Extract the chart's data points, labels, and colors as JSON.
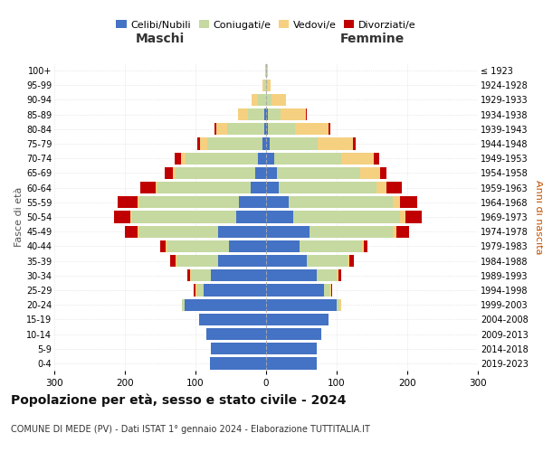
{
  "age_groups": [
    "0-4",
    "5-9",
    "10-14",
    "15-19",
    "20-24",
    "25-29",
    "30-34",
    "35-39",
    "40-44",
    "45-49",
    "50-54",
    "55-59",
    "60-64",
    "65-69",
    "70-74",
    "75-79",
    "80-84",
    "85-89",
    "90-94",
    "95-99",
    "100+"
  ],
  "birth_years": [
    "2019-2023",
    "2014-2018",
    "2009-2013",
    "2004-2008",
    "1999-2003",
    "1994-1998",
    "1989-1993",
    "1984-1988",
    "1979-1983",
    "1974-1978",
    "1969-1973",
    "1964-1968",
    "1959-1963",
    "1954-1958",
    "1949-1953",
    "1944-1948",
    "1939-1943",
    "1934-1938",
    "1929-1933",
    "1924-1928",
    "≤ 1923"
  ],
  "male_celibi": [
    80,
    78,
    85,
    95,
    115,
    88,
    78,
    68,
    52,
    68,
    42,
    38,
    22,
    16,
    12,
    5,
    3,
    2,
    0,
    0,
    0
  ],
  "male_coniugati": [
    0,
    0,
    0,
    0,
    4,
    10,
    28,
    58,
    88,
    112,
    148,
    142,
    132,
    112,
    102,
    78,
    52,
    24,
    12,
    3,
    1
  ],
  "male_vedovi": [
    0,
    0,
    0,
    0,
    0,
    2,
    2,
    2,
    2,
    2,
    2,
    2,
    2,
    4,
    6,
    10,
    16,
    14,
    8,
    2,
    0
  ],
  "male_divorziati": [
    0,
    0,
    0,
    0,
    0,
    2,
    4,
    8,
    8,
    18,
    24,
    28,
    22,
    12,
    10,
    4,
    2,
    0,
    0,
    0,
    0
  ],
  "female_celibi": [
    72,
    72,
    78,
    88,
    100,
    82,
    72,
    58,
    48,
    62,
    38,
    32,
    18,
    15,
    12,
    5,
    3,
    2,
    0,
    0,
    0
  ],
  "female_coniugati": [
    0,
    0,
    0,
    0,
    4,
    8,
    28,
    58,
    88,
    118,
    152,
    148,
    138,
    118,
    95,
    68,
    38,
    18,
    8,
    2,
    1
  ],
  "female_vedovi": [
    0,
    0,
    0,
    0,
    2,
    2,
    2,
    2,
    2,
    4,
    8,
    10,
    14,
    28,
    45,
    50,
    48,
    36,
    20,
    5,
    1
  ],
  "female_divorziati": [
    0,
    0,
    0,
    0,
    0,
    2,
    4,
    6,
    6,
    18,
    22,
    24,
    22,
    10,
    8,
    4,
    2,
    2,
    0,
    0,
    0
  ],
  "color_celibi": "#4472c4",
  "color_coniugati": "#c5d9a0",
  "color_vedovi": "#f5d080",
  "color_divorziati": "#c00000",
  "title": "Popolazione per età, sesso e stato civile - 2024",
  "subtitle": "COMUNE DI MEDE (PV) - Dati ISTAT 1° gennaio 2024 - Elaborazione TUTTITALIA.IT",
  "xlabel_left": "Maschi",
  "xlabel_right": "Femmine",
  "ylabel_left": "Fasce di età",
  "ylabel_right": "Anni di nascita",
  "xlim": 300,
  "bg_color": "#ffffff",
  "grid_color": "#cccccc"
}
